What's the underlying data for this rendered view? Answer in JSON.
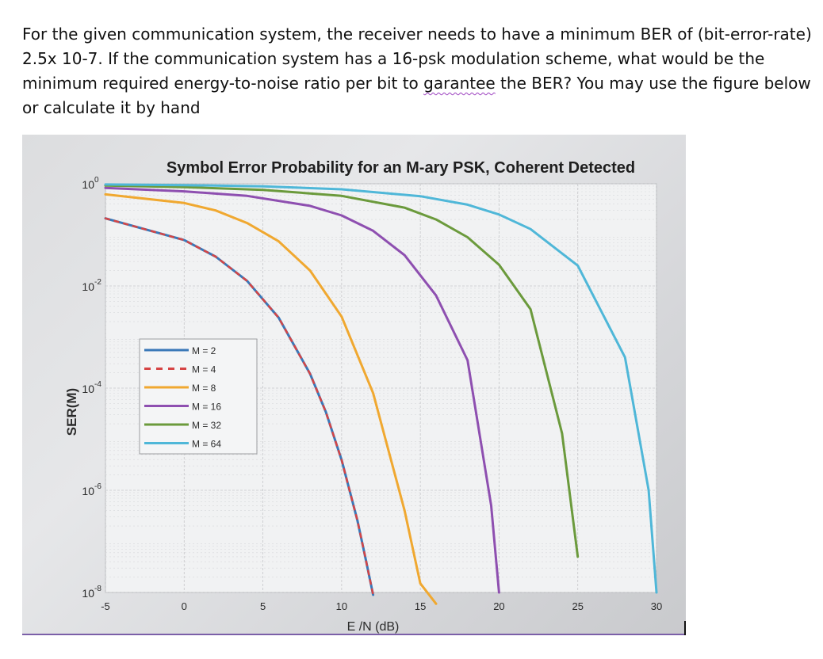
{
  "question": {
    "part1": "For the given communication system, the receiver needs to have a minimum BER of (bit-error-rate) 2.5x 10-7. If the communication system has a 16-psk modulation scheme, what would be the minimum required energy-to-noise ratio per bit to ",
    "misspelled": "garantee",
    "part2": " the BER? You may use the figure below or calculate it by hand"
  },
  "chart_data": {
    "type": "line",
    "title": "Symbol Error Probability for an M-ary PSK, Coherent Detected",
    "xlabel": "E_b/N_0 (dB)",
    "xlabel_display": "E /N (dB)",
    "ylabel": "SER(M)",
    "log_y": true,
    "xlim": [
      -5,
      30
    ],
    "ylim": [
      1e-08,
      1
    ],
    "x_ticks": [
      "-5",
      "0",
      "5",
      "10",
      "15",
      "20",
      "25",
      "30"
    ],
    "y_ticks": [
      {
        "base": "10",
        "exp": "0",
        "value": 1
      },
      {
        "base": "10",
        "exp": "-2",
        "value": 0.01
      },
      {
        "base": "10",
        "exp": "-4",
        "value": 0.0001
      },
      {
        "base": "10",
        "exp": "-6",
        "value": 1e-06
      },
      {
        "base": "10",
        "exp": "-8",
        "value": 1e-08
      }
    ],
    "grid": true,
    "legend_position": "center-left",
    "series": [
      {
        "name": "M = 2",
        "color": "#3a78b8",
        "dash": false,
        "x": [
          -5,
          0,
          2,
          4,
          6,
          8,
          9,
          10,
          11,
          11.5,
          12
        ],
        "y": [
          0.21,
          0.079,
          0.0375,
          0.0125,
          0.0024,
          0.00019,
          3.4e-05,
          3.9e-06,
          2.6e-07,
          5e-08,
          9e-09
        ]
      },
      {
        "name": "M = 4",
        "color": "#d64545",
        "dash": true,
        "x": [
          -5,
          0,
          2,
          4,
          6,
          8,
          9,
          10,
          11,
          11.5,
          12
        ],
        "y": [
          0.21,
          0.079,
          0.0375,
          0.0125,
          0.0024,
          0.00019,
          3.4e-05,
          3.9e-06,
          2.6e-07,
          5e-08,
          9e-09
        ]
      },
      {
        "name": "M = 8",
        "color": "#f0a830",
        "dash": false,
        "x": [
          -5,
          0,
          2,
          4,
          6,
          8,
          10,
          12,
          14,
          15,
          16
        ],
        "y": [
          0.62,
          0.42,
          0.3,
          0.17,
          0.075,
          0.02,
          0.0025,
          8e-05,
          4e-07,
          1.5e-08,
          6e-09
        ]
      },
      {
        "name": "M = 16",
        "color": "#8e4fb0",
        "dash": false,
        "x": [
          -5,
          0,
          4,
          8,
          10,
          12,
          14,
          16,
          18,
          19.5,
          20
        ],
        "y": [
          0.83,
          0.71,
          0.58,
          0.37,
          0.24,
          0.12,
          0.04,
          0.0065,
          0.00035,
          5e-07,
          1e-08
        ]
      },
      {
        "name": "M = 32",
        "color": "#6b9a3c",
        "dash": false,
        "x": [
          -5,
          0,
          5,
          10,
          14,
          16,
          18,
          20,
          22,
          24,
          25
        ],
        "y": [
          0.92,
          0.86,
          0.76,
          0.58,
          0.34,
          0.2,
          0.09,
          0.026,
          0.0035,
          1.3e-05,
          5e-08
        ]
      },
      {
        "name": "M = 64",
        "color": "#4fb7d8",
        "dash": false,
        "x": [
          -5,
          0,
          5,
          10,
          15,
          18,
          20,
          22,
          25,
          28,
          29.5,
          30
        ],
        "y": [
          0.97,
          0.94,
          0.89,
          0.78,
          0.57,
          0.39,
          0.25,
          0.13,
          0.025,
          0.0004,
          1e-06,
          1e-08
        ]
      }
    ]
  }
}
